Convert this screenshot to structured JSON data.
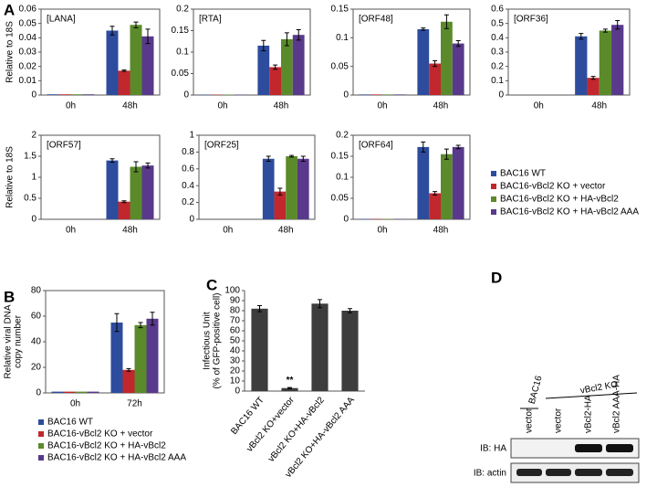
{
  "panel_labels": [
    "A",
    "B",
    "C",
    "D"
  ],
  "chart_data": [
    {
      "type": "bar",
      "title": "[LANA]",
      "ylabel": "Relative to 18S",
      "categories": [
        "0h",
        "48h"
      ],
      "ylim": [
        0,
        0.06
      ],
      "yticks": [
        0,
        0.01,
        0.02,
        0.03,
        0.04,
        0.05,
        0.06
      ],
      "series": [
        {
          "name": "BAC16 WT",
          "color": "#2d4c9e",
          "values": [
            0.0005,
            0.045
          ],
          "errors": [
            0,
            0.003
          ]
        },
        {
          "name": "BAC16-vBcl2 KO + vector",
          "color": "#c1272d",
          "values": [
            0.0005,
            0.017
          ],
          "errors": [
            0,
            0.0005
          ]
        },
        {
          "name": "BAC16-vBcl2 KO + HA-vBcl2",
          "color": "#5b8a2b",
          "values": [
            0.0005,
            0.049
          ],
          "errors": [
            0,
            0.002
          ]
        },
        {
          "name": "BAC16-vBcl2 KO + HA-vBcl2 AAA",
          "color": "#59398b",
          "values": [
            0.0005,
            0.041
          ],
          "errors": [
            0,
            0.005
          ]
        }
      ]
    },
    {
      "type": "bar",
      "title": "[RTA]",
      "categories": [
        "0h",
        "48h"
      ],
      "ylim": [
        0,
        0.2
      ],
      "yticks": [
        0,
        0.05,
        0.1,
        0.15,
        0.2
      ],
      "series": [
        {
          "color": "#2d4c9e",
          "values": [
            0.001,
            0.115
          ],
          "errors": [
            0,
            0.012
          ]
        },
        {
          "color": "#c1272d",
          "values": [
            0.001,
            0.065
          ],
          "errors": [
            0,
            0.005
          ]
        },
        {
          "color": "#5b8a2b",
          "values": [
            0.001,
            0.13
          ],
          "errors": [
            0,
            0.015
          ]
        },
        {
          "color": "#59398b",
          "values": [
            0.001,
            0.14
          ],
          "errors": [
            0,
            0.012
          ]
        }
      ]
    },
    {
      "type": "bar",
      "title": "[ORF48]",
      "categories": [
        "0h",
        "48h"
      ],
      "ylim": [
        0,
        0.15
      ],
      "yticks": [
        0,
        0.05,
        0.1,
        0.15
      ],
      "series": [
        {
          "color": "#2d4c9e",
          "values": [
            0.001,
            0.115
          ],
          "errors": [
            0,
            0.002
          ]
        },
        {
          "color": "#c1272d",
          "values": [
            0.001,
            0.055
          ],
          "errors": [
            0,
            0.005
          ]
        },
        {
          "color": "#5b8a2b",
          "values": [
            0.001,
            0.128
          ],
          "errors": [
            0,
            0.012
          ]
        },
        {
          "color": "#59398b",
          "values": [
            0.001,
            0.09
          ],
          "errors": [
            0,
            0.005
          ]
        }
      ]
    },
    {
      "type": "bar",
      "title": "[ORF36]",
      "categories": [
        "0h",
        "48h"
      ],
      "ylim": [
        0,
        0.6
      ],
      "yticks": [
        0,
        0.1,
        0.2,
        0.3,
        0.4,
        0.5,
        0.6
      ],
      "series": [
        {
          "color": "#2d4c9e",
          "values": [
            0,
            0.41
          ],
          "errors": [
            0,
            0.02
          ]
        },
        {
          "color": "#c1272d",
          "values": [
            0,
            0.12
          ],
          "errors": [
            0,
            0.01
          ]
        },
        {
          "color": "#5b8a2b",
          "values": [
            0,
            0.45
          ],
          "errors": [
            0,
            0.01
          ]
        },
        {
          "color": "#59398b",
          "values": [
            0,
            0.49
          ],
          "errors": [
            0,
            0.03
          ]
        }
      ]
    },
    {
      "type": "bar",
      "title": "[ORF57]",
      "ylabel": "Relative to 18S",
      "categories": [
        "0h",
        "48h"
      ],
      "ylim": [
        0,
        2
      ],
      "yticks": [
        0,
        0.5,
        1,
        1.5,
        2
      ],
      "series": [
        {
          "color": "#2d4c9e",
          "values": [
            0,
            1.4
          ],
          "errors": [
            0,
            0.04
          ]
        },
        {
          "color": "#c1272d",
          "values": [
            0,
            0.42
          ],
          "errors": [
            0,
            0.02
          ]
        },
        {
          "color": "#5b8a2b",
          "values": [
            0,
            1.25
          ],
          "errors": [
            0,
            0.12
          ]
        },
        {
          "color": "#59398b",
          "values": [
            0,
            1.28
          ],
          "errors": [
            0,
            0.06
          ]
        }
      ]
    },
    {
      "type": "bar",
      "title": "[ORF25]",
      "categories": [
        "0h",
        "48h"
      ],
      "ylim": [
        0,
        1
      ],
      "yticks": [
        0,
        0.2,
        0.4,
        0.6,
        0.8,
        1
      ],
      "series": [
        {
          "color": "#2d4c9e",
          "values": [
            0,
            0.72
          ],
          "errors": [
            0,
            0.03
          ]
        },
        {
          "color": "#c1272d",
          "values": [
            0,
            0.33
          ],
          "errors": [
            0,
            0.04
          ]
        },
        {
          "color": "#5b8a2b",
          "values": [
            0,
            0.75
          ],
          "errors": [
            0,
            0.01
          ]
        },
        {
          "color": "#59398b",
          "values": [
            0,
            0.72
          ],
          "errors": [
            0,
            0.03
          ]
        }
      ]
    },
    {
      "type": "bar",
      "title": "[ORF64]",
      "categories": [
        "0h",
        "48h"
      ],
      "ylim": [
        0,
        0.2
      ],
      "yticks": [
        0,
        0.05,
        0.1,
        0.15,
        0.2
      ],
      "series": [
        {
          "color": "#2d4c9e",
          "values": [
            0.001,
            0.172
          ],
          "errors": [
            0,
            0.012
          ]
        },
        {
          "color": "#c1272d",
          "values": [
            0.001,
            0.062
          ],
          "errors": [
            0,
            0.004
          ]
        },
        {
          "color": "#5b8a2b",
          "values": [
            0.001,
            0.155
          ],
          "errors": [
            0,
            0.012
          ]
        },
        {
          "color": "#59398b",
          "values": [
            0.001,
            0.172
          ],
          "errors": [
            0,
            0.004
          ]
        }
      ]
    },
    {
      "type": "bar",
      "ylabel": [
        "Relative viral DNA",
        "copy number"
      ],
      "categories": [
        "0h",
        "72h"
      ],
      "ylim": [
        0,
        80
      ],
      "yticks": [
        0,
        20,
        40,
        60,
        80
      ],
      "series": [
        {
          "name": "BAC16 WT",
          "color": "#2d4c9e",
          "values": [
            1,
            55
          ],
          "errors": [
            0,
            7
          ]
        },
        {
          "name": "BAC16-vBcl2 KO + vector",
          "color": "#c1272d",
          "values": [
            1,
            18
          ],
          "errors": [
            0,
            1
          ]
        },
        {
          "name": "BAC16-vBcl2 KO + HA-vBcl2",
          "color": "#5b8a2b",
          "values": [
            1,
            53
          ],
          "errors": [
            0,
            2
          ]
        },
        {
          "name": "BAC16-vBcl2 KO + HA-vBcl2 AAA",
          "color": "#59398b",
          "values": [
            1,
            58
          ],
          "errors": [
            0,
            5
          ]
        }
      ]
    },
    {
      "type": "bar",
      "ylabel": [
        "Infectious Unit",
        "(% of GFP-positive cell)"
      ],
      "categories": [
        "BAC16 WT",
        "vBcl2 KO+vector",
        "vBcl2 KO+HA-vBcl2",
        "vBcl2 KO+HA-vBcl2 AAA"
      ],
      "ylim": [
        0,
        100
      ],
      "yticks": [
        0,
        10,
        20,
        30,
        40,
        50,
        60,
        70,
        80,
        90,
        100
      ],
      "annotation": "**",
      "series": [
        {
          "color": "#3d3d3d",
          "values": [
            82,
            3,
            87,
            80
          ],
          "errors": [
            3,
            0.5,
            4,
            2
          ]
        }
      ]
    }
  ],
  "blot": {
    "groups": [
      "BAC16",
      "vBcl2 KO"
    ],
    "lanes": [
      "vector",
      "vector",
      "vBcl2-HA",
      "vBcl2 AAA-HA"
    ],
    "rows": [
      "IB: HA",
      "IB: actin"
    ]
  }
}
